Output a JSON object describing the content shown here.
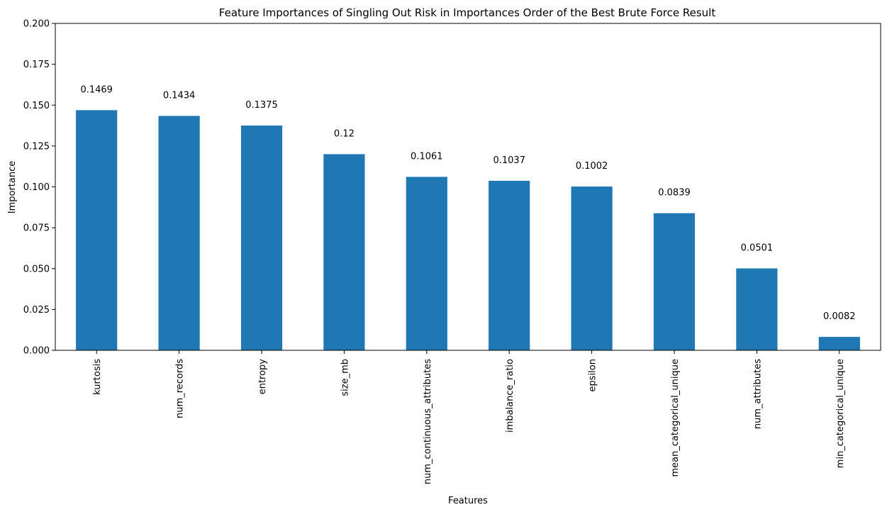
{
  "chart_data": {
    "type": "bar",
    "title": "Feature Importances of Singling Out Risk in Importances Order of the Best Brute Force Result",
    "xlabel": "Features",
    "ylabel": "Importance",
    "categories": [
      "kurtosis",
      "num_records",
      "entropy",
      "size_mb",
      "num_continuous_attributes",
      "imbalance_ratio",
      "epsilon",
      "mean_categorical_unique",
      "num_attributes",
      "min_categorical_unique"
    ],
    "values": [
      0.1469,
      0.1434,
      0.1375,
      0.12,
      0.1061,
      0.1037,
      0.1002,
      0.0839,
      0.0501,
      0.0082
    ],
    "data_labels": [
      "0.1469",
      "0.1434",
      "0.1375",
      "0.12",
      "0.1061",
      "0.1037",
      "0.1002",
      "0.0839",
      "0.0501",
      "0.0082"
    ],
    "yticks": [
      "0.000",
      "0.025",
      "0.050",
      "0.075",
      "0.100",
      "0.125",
      "0.150",
      "0.175",
      "0.200"
    ],
    "ylim": [
      0,
      0.2
    ],
    "grid": false,
    "bar_color": "#1f77b4"
  }
}
